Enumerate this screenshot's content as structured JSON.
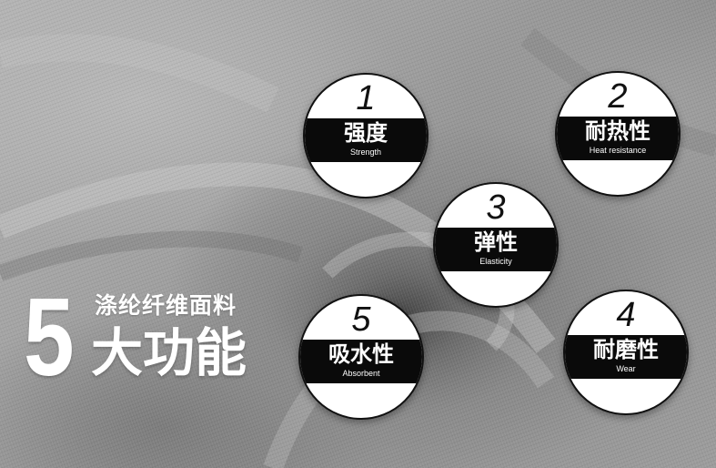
{
  "headline": {
    "number": "5",
    "line1": "涤纶纤维面料",
    "line2": "大功能"
  },
  "features": [
    {
      "number": "1",
      "label": "强度",
      "sub": "Strength"
    },
    {
      "number": "2",
      "label": "耐热性",
      "sub": "Heat resistance"
    },
    {
      "number": "3",
      "label": "弹性",
      "sub": "Elasticity"
    },
    {
      "number": "4",
      "label": "耐磨性",
      "sub": "Wear"
    },
    {
      "number": "5",
      "label": "吸水性",
      "sub": "Absorbent"
    }
  ],
  "colors": {
    "badge_band": "#0a0a0a",
    "badge_fill": "#ffffff",
    "headline_text": "#ffffff",
    "fabric": "#9c9c9c"
  }
}
